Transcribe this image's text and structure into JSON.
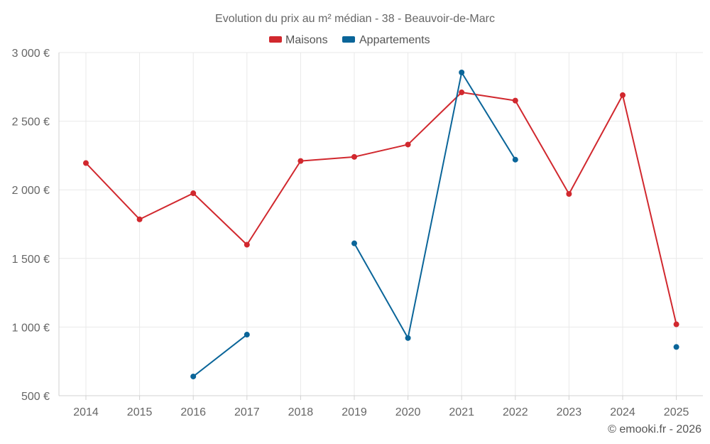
{
  "chart_data": {
    "type": "line",
    "title": "Evolution du prix au m² médian - 38 - Beauvoir-de-Marc",
    "xlabel": "",
    "ylabel": "",
    "x": [
      2014,
      2015,
      2016,
      2017,
      2018,
      2019,
      2020,
      2021,
      2022,
      2023,
      2024,
      2025
    ],
    "ylim": [
      500,
      3000
    ],
    "yticks": [
      500,
      1000,
      1500,
      2000,
      2500,
      3000
    ],
    "ytick_labels": [
      "500 €",
      "1 000 €",
      "1 500 €",
      "2 000 €",
      "2 500 €",
      "3 000 €"
    ],
    "grid": true,
    "legend_position": "top-center",
    "series": [
      {
        "name": "Maisons",
        "color": "#d1282e",
        "values": [
          2195,
          1785,
          1975,
          1600,
          2210,
          2240,
          2330,
          2710,
          2650,
          1970,
          2690,
          1020
        ]
      },
      {
        "name": "Appartements",
        "color": "#0a6599",
        "values": [
          null,
          null,
          640,
          945,
          null,
          1610,
          920,
          2855,
          2220,
          null,
          null,
          855
        ]
      }
    ],
    "credit": "© emooki.fr - 2026"
  }
}
